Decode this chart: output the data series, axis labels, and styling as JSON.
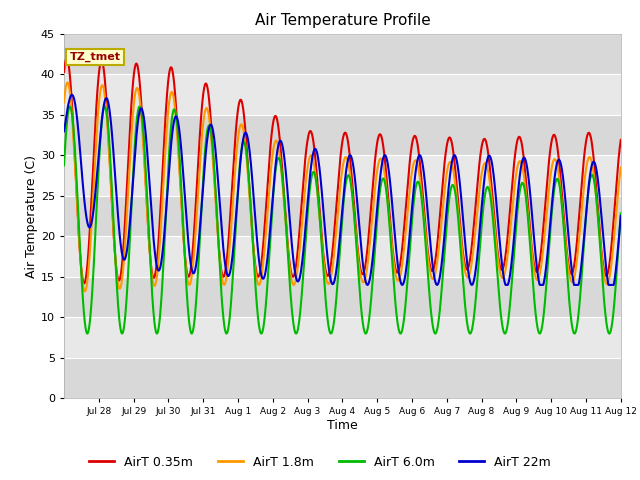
{
  "title": "Air Temperature Profile",
  "xlabel": "Time",
  "ylabel": "Air Temperature (C)",
  "xlim_days": [
    0,
    16
  ],
  "ylim": [
    0,
    45
  ],
  "yticks": [
    0,
    5,
    10,
    15,
    20,
    25,
    30,
    35,
    40,
    45
  ],
  "background_color": "#ffffff",
  "plot_bg_light": "#e8e8e8",
  "plot_bg_dark": "#d0d0d0",
  "series": [
    {
      "label": "AirT 0.35m",
      "color": "#dd0000"
    },
    {
      "label": "AirT 1.8m",
      "color": "#ff9900"
    },
    {
      "label": "AirT 6.0m",
      "color": "#00bb00"
    },
    {
      "label": "AirT 22m",
      "color": "#0000cc"
    }
  ],
  "xtick_labels": [
    "Jul 28",
    "Jul 29",
    "Jul 30",
    "Jul 31",
    "Aug 1",
    "Aug 2",
    "Aug 3",
    "Aug 4",
    "Aug 5",
    "Aug 6",
    "Aug 7",
    "Aug 8",
    "Aug 9",
    "Aug 10",
    "Aug 11",
    "Aug 12"
  ],
  "xtick_positions": [
    1,
    2,
    3,
    4,
    5,
    6,
    7,
    8,
    9,
    10,
    11,
    12,
    13,
    14,
    15,
    16
  ],
  "annotation_text": "TZ_tmet",
  "grid_color": "#ffffff",
  "line_width": 1.5,
  "legend_ncol": 4,
  "shading_light": "#e8e8e8",
  "shading_dark": "#d8d8d8"
}
